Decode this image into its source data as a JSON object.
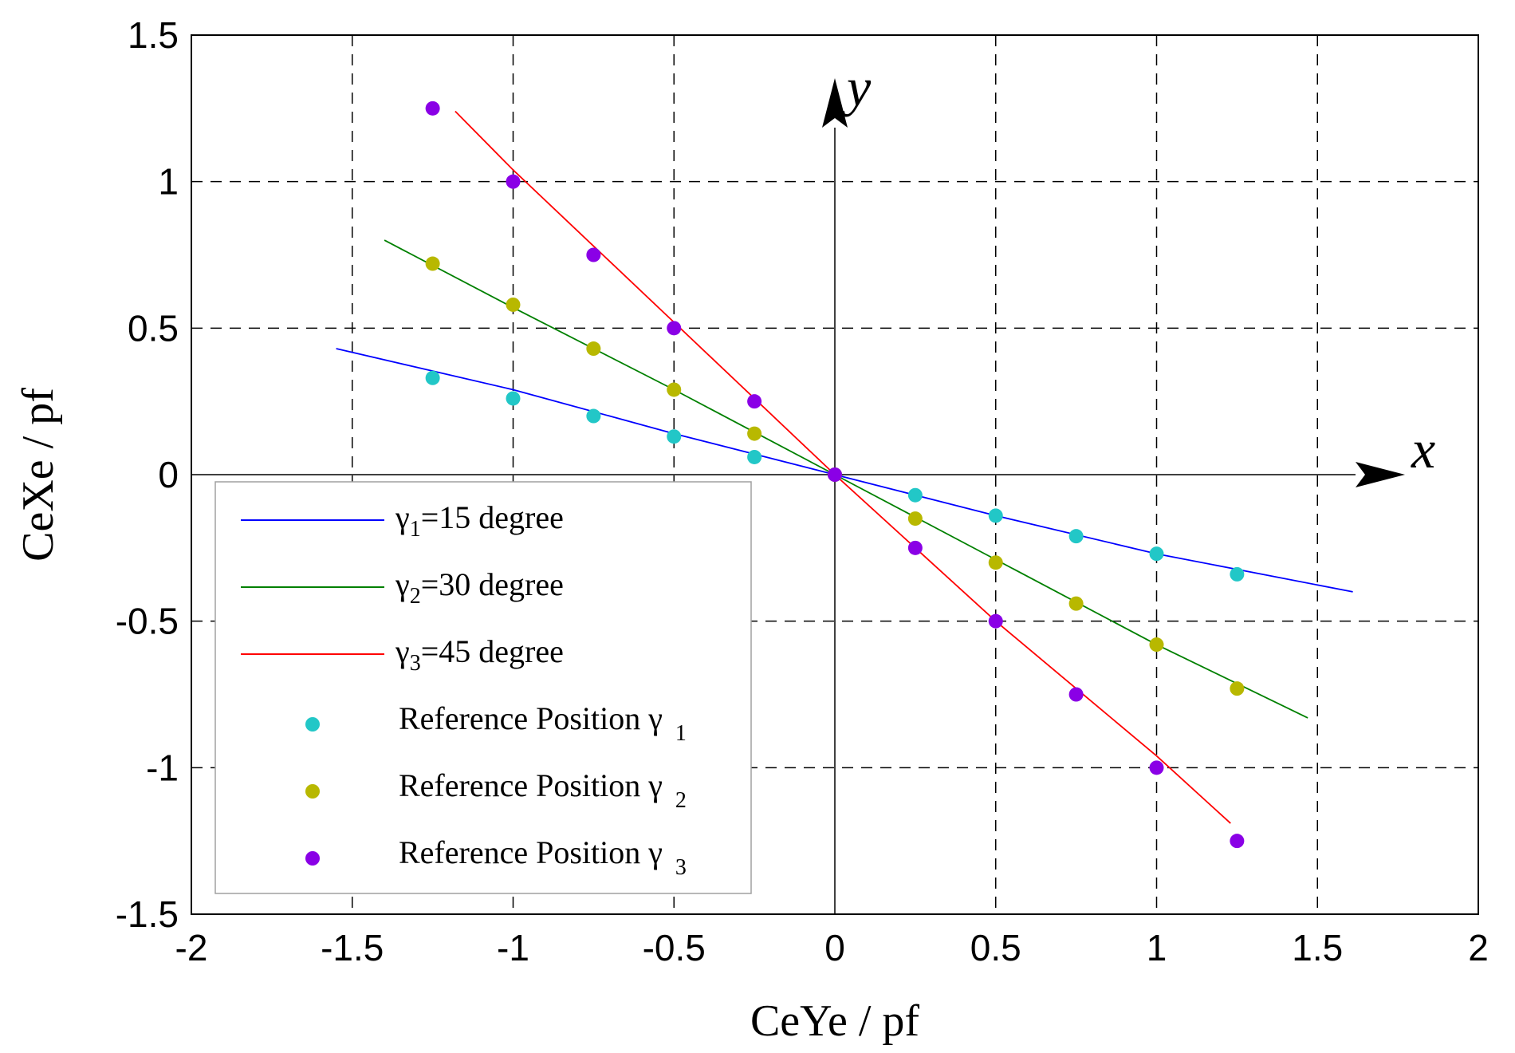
{
  "chart_data": {
    "type": "line",
    "xlabel": "CeYe / pf",
    "ylabel": "CeXe / pf",
    "xlim": [
      -2,
      2
    ],
    "ylim": [
      -1.5,
      1.5
    ],
    "grid": true,
    "x_ticks": [
      "-2",
      "-1.5",
      "-1",
      "-0.5",
      "0",
      "0.5",
      "1",
      "1.5",
      "2"
    ],
    "y_ticks": [
      "1.5",
      "1",
      "0.5",
      "0",
      "-0.5",
      "-1",
      "-1.5"
    ],
    "axis_letters": {
      "x": "x",
      "y": "y"
    },
    "series": [
      {
        "name": "γ1=15 degree",
        "symbol": "γ",
        "sub": "1",
        "rest": "=15 degree",
        "kind": "line",
        "color": "#0000ff",
        "x": [
          -1.55,
          -1.0,
          -0.5,
          0.0,
          0.5,
          1.0,
          1.61
        ],
        "y": [
          0.43,
          0.29,
          0.14,
          0.0,
          -0.14,
          -0.27,
          -0.4
        ]
      },
      {
        "name": "γ2=30 degree",
        "symbol": "γ",
        "sub": "2",
        "rest": "=30 degree",
        "kind": "line",
        "color": "#008000",
        "x": [
          -1.4,
          -1.0,
          -0.5,
          0.0,
          0.5,
          1.0,
          1.47
        ],
        "y": [
          0.8,
          0.57,
          0.29,
          0.0,
          -0.29,
          -0.58,
          -0.83
        ]
      },
      {
        "name": "γ3=45 degree",
        "symbol": "γ",
        "sub": "3",
        "rest": "=45 degree",
        "kind": "line",
        "color": "#ff0000",
        "x": [
          -1.18,
          -1.0,
          -0.5,
          0.0,
          0.5,
          1.0,
          1.23
        ],
        "y": [
          1.24,
          1.04,
          0.52,
          0.0,
          -0.5,
          -0.96,
          -1.19
        ]
      },
      {
        "name": "Reference Position γ 1",
        "label": "Reference Position γ",
        "sub": "1",
        "kind": "scatter",
        "color": "#22c7c7",
        "x": [
          -1.25,
          -1.0,
          -0.75,
          -0.5,
          -0.25,
          0.0,
          0.25,
          0.5,
          0.75,
          1.0,
          1.25
        ],
        "y": [
          0.33,
          0.26,
          0.2,
          0.13,
          0.06,
          0.0,
          -0.07,
          -0.14,
          -0.21,
          -0.27,
          -0.34
        ]
      },
      {
        "name": "Reference Position γ 2",
        "label": "Reference Position γ",
        "sub": "2",
        "kind": "scatter",
        "color": "#b8b800",
        "x": [
          -1.25,
          -1.0,
          -0.75,
          -0.5,
          -0.25,
          0.0,
          0.25,
          0.5,
          0.75,
          1.0,
          1.25
        ],
        "y": [
          0.72,
          0.58,
          0.43,
          0.29,
          0.14,
          0.0,
          -0.15,
          -0.3,
          -0.44,
          -0.58,
          -0.73
        ]
      },
      {
        "name": "Reference Position γ 3",
        "label": "Reference Position γ",
        "sub": "3",
        "kind": "scatter",
        "color": "#8a00e6",
        "x": [
          -1.25,
          -1.0,
          -0.75,
          -0.5,
          -0.25,
          0.0,
          0.25,
          0.5,
          0.75,
          1.0,
          1.25
        ],
        "y": [
          1.25,
          1.0,
          0.75,
          0.5,
          0.25,
          0.0,
          -0.25,
          -0.5,
          -0.75,
          -1.0,
          -1.25
        ]
      }
    ]
  }
}
